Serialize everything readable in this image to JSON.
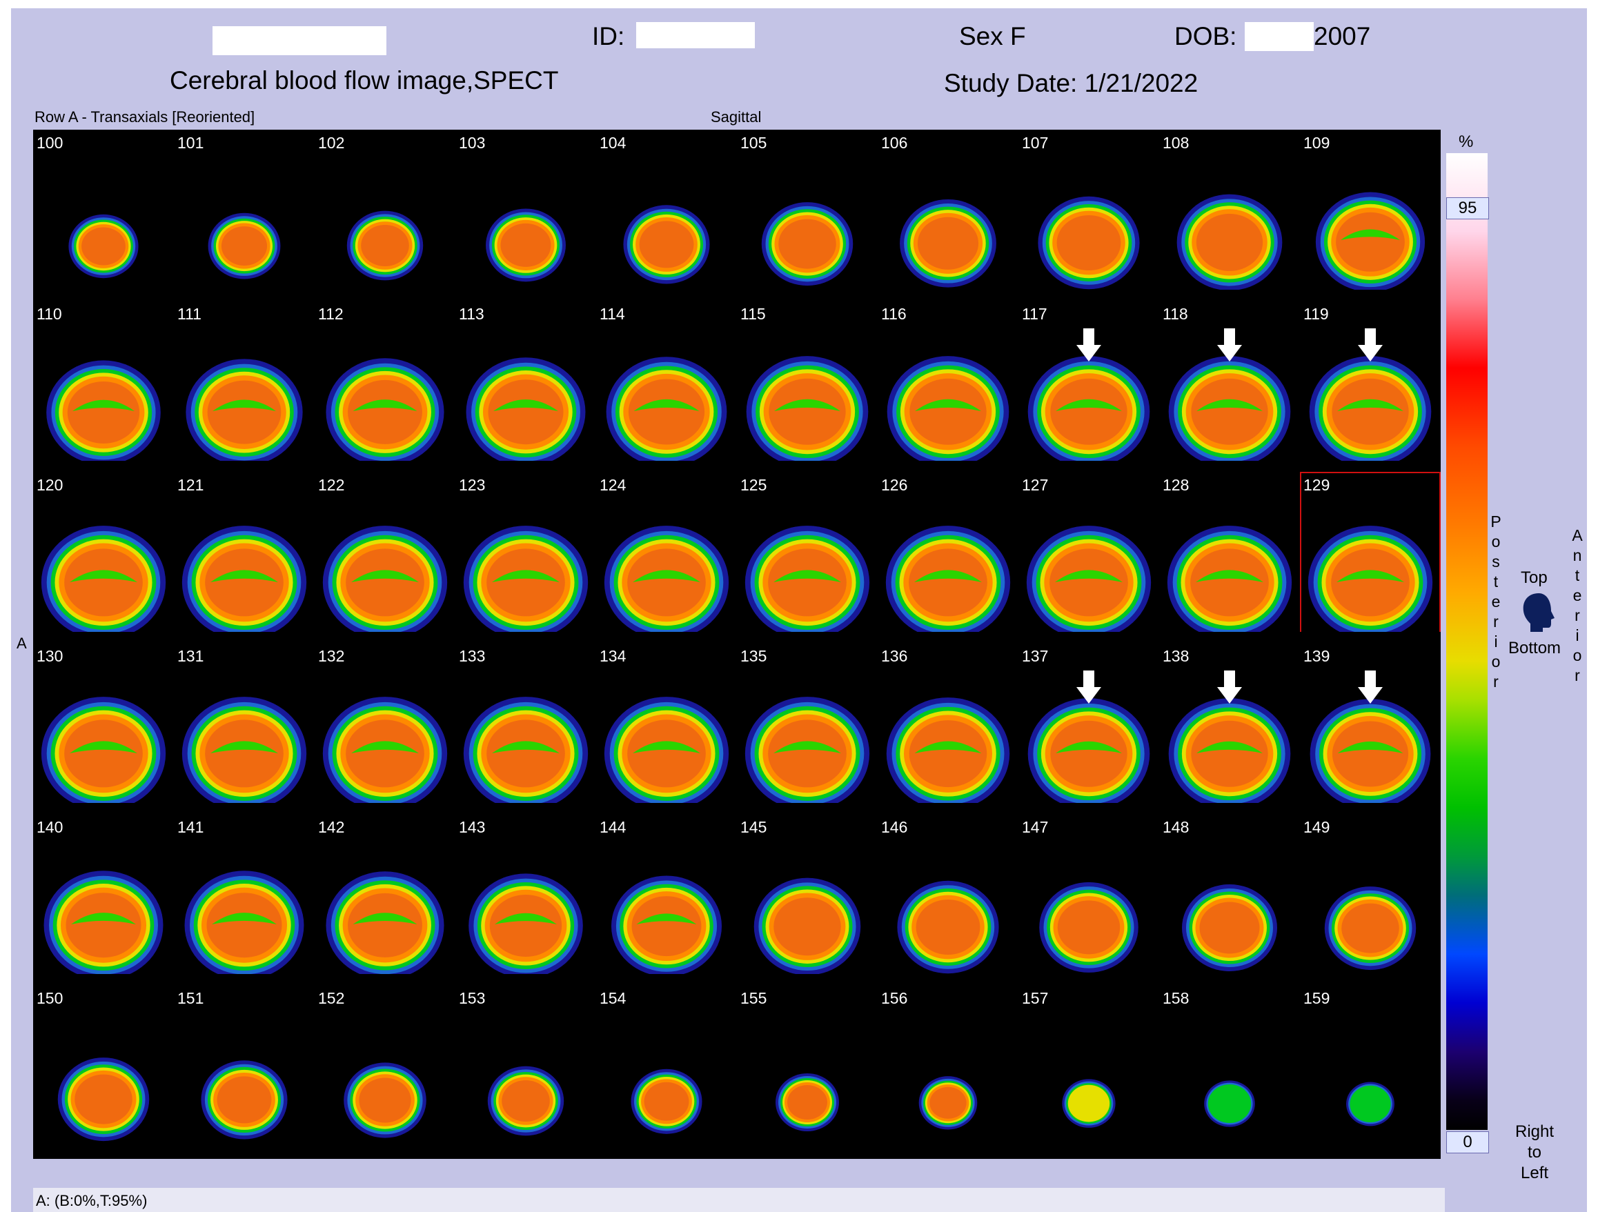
{
  "header": {
    "id_label": "ID:",
    "sex": "Sex F",
    "dob_label": "DOB:",
    "dob_value": "2007",
    "study_title": "Cerebral blood flow image,SPECT",
    "study_date": "Study Date: 1/21/2022"
  },
  "panel": {
    "row_label": "Row A - Transaxials [Reoriented]",
    "view_label": "Sagittal",
    "side_marker": "A"
  },
  "slices": [
    {
      "label": "100",
      "intensity": 0.82,
      "size": 0.55
    },
    {
      "label": "101",
      "intensity": 0.82,
      "size": 0.57
    },
    {
      "label": "102",
      "intensity": 0.82,
      "size": 0.6
    },
    {
      "label": "103",
      "intensity": 0.82,
      "size": 0.63
    },
    {
      "label": "104",
      "intensity": 0.82,
      "size": 0.68
    },
    {
      "label": "105",
      "intensity": 0.82,
      "size": 0.72
    },
    {
      "label": "106",
      "intensity": 0.82,
      "size": 0.76
    },
    {
      "label": "107",
      "intensity": 0.82,
      "size": 0.8
    },
    {
      "label": "108",
      "intensity": 0.82,
      "size": 0.83
    },
    {
      "label": "109",
      "intensity": 0.82,
      "size": 0.86
    },
    {
      "label": "110",
      "intensity": 0.85,
      "size": 0.9
    },
    {
      "label": "111",
      "intensity": 0.85,
      "size": 0.92
    },
    {
      "label": "112",
      "intensity": 0.85,
      "size": 0.93
    },
    {
      "label": "113",
      "intensity": 0.85,
      "size": 0.94
    },
    {
      "label": "114",
      "intensity": 0.85,
      "size": 0.95
    },
    {
      "label": "115",
      "intensity": 0.85,
      "size": 0.96
    },
    {
      "label": "116",
      "intensity": 0.85,
      "size": 0.96
    },
    {
      "label": "117",
      "intensity": 0.85,
      "size": 0.96
    },
    {
      "label": "118",
      "intensity": 0.85,
      "size": 0.96
    },
    {
      "label": "119",
      "intensity": 0.85,
      "size": 0.96
    },
    {
      "label": "120",
      "intensity": 0.88,
      "size": 0.98
    },
    {
      "label": "121",
      "intensity": 0.88,
      "size": 0.98
    },
    {
      "label": "122",
      "intensity": 0.88,
      "size": 0.98
    },
    {
      "label": "123",
      "intensity": 0.88,
      "size": 0.98
    },
    {
      "label": "124",
      "intensity": 0.9,
      "size": 0.98
    },
    {
      "label": "125",
      "intensity": 0.9,
      "size": 0.98
    },
    {
      "label": "126",
      "intensity": 0.9,
      "size": 0.98
    },
    {
      "label": "127",
      "intensity": 0.9,
      "size": 0.98
    },
    {
      "label": "128",
      "intensity": 0.9,
      "size": 0.98
    },
    {
      "label": "129",
      "intensity": 0.9,
      "size": 0.98
    },
    {
      "label": "130",
      "intensity": 0.88,
      "size": 0.98
    },
    {
      "label": "131",
      "intensity": 0.86,
      "size": 0.98
    },
    {
      "label": "132",
      "intensity": 0.86,
      "size": 0.98
    },
    {
      "label": "133",
      "intensity": 0.86,
      "size": 0.98
    },
    {
      "label": "134",
      "intensity": 0.85,
      "size": 0.98
    },
    {
      "label": "135",
      "intensity": 0.85,
      "size": 0.98
    },
    {
      "label": "136",
      "intensity": 0.85,
      "size": 0.97
    },
    {
      "label": "137",
      "intensity": 0.85,
      "size": 0.96
    },
    {
      "label": "138",
      "intensity": 0.85,
      "size": 0.96
    },
    {
      "label": "139",
      "intensity": 0.85,
      "size": 0.95
    },
    {
      "label": "140",
      "intensity": 0.84,
      "size": 0.94
    },
    {
      "label": "141",
      "intensity": 0.84,
      "size": 0.94
    },
    {
      "label": "142",
      "intensity": 0.84,
      "size": 0.93
    },
    {
      "label": "143",
      "intensity": 0.84,
      "size": 0.9
    },
    {
      "label": "144",
      "intensity": 0.84,
      "size": 0.87
    },
    {
      "label": "145",
      "intensity": 0.84,
      "size": 0.84
    },
    {
      "label": "146",
      "intensity": 0.84,
      "size": 0.8
    },
    {
      "label": "147",
      "intensity": 0.84,
      "size": 0.78
    },
    {
      "label": "148",
      "intensity": 0.82,
      "size": 0.75
    },
    {
      "label": "149",
      "intensity": 0.8,
      "size": 0.72
    },
    {
      "label": "150",
      "intensity": 0.8,
      "size": 0.72
    },
    {
      "label": "151",
      "intensity": 0.8,
      "size": 0.68
    },
    {
      "label": "152",
      "intensity": 0.78,
      "size": 0.65
    },
    {
      "label": "153",
      "intensity": 0.75,
      "size": 0.6
    },
    {
      "label": "154",
      "intensity": 0.72,
      "size": 0.56
    },
    {
      "label": "155",
      "intensity": 0.68,
      "size": 0.5
    },
    {
      "label": "156",
      "intensity": 0.6,
      "size": 0.46
    },
    {
      "label": "157",
      "intensity": 0.5,
      "size": 0.42
    },
    {
      "label": "158",
      "intensity": 0.4,
      "size": 0.4
    },
    {
      "label": "159",
      "intensity": 0.3,
      "size": 0.38
    }
  ],
  "selected_slice": "129",
  "arrows_on": [
    "117",
    "118",
    "119",
    "137",
    "138",
    "139"
  ],
  "colorbar": {
    "unit": "%",
    "max": "95",
    "min": "0"
  },
  "orientation": {
    "posterior": "Posterior",
    "anterior": "Anterior",
    "top": "Top",
    "bottom": "Bottom",
    "direction": "Right\nto\nLeft"
  },
  "status": {
    "text": "A: (B:0%,T:95%)"
  }
}
